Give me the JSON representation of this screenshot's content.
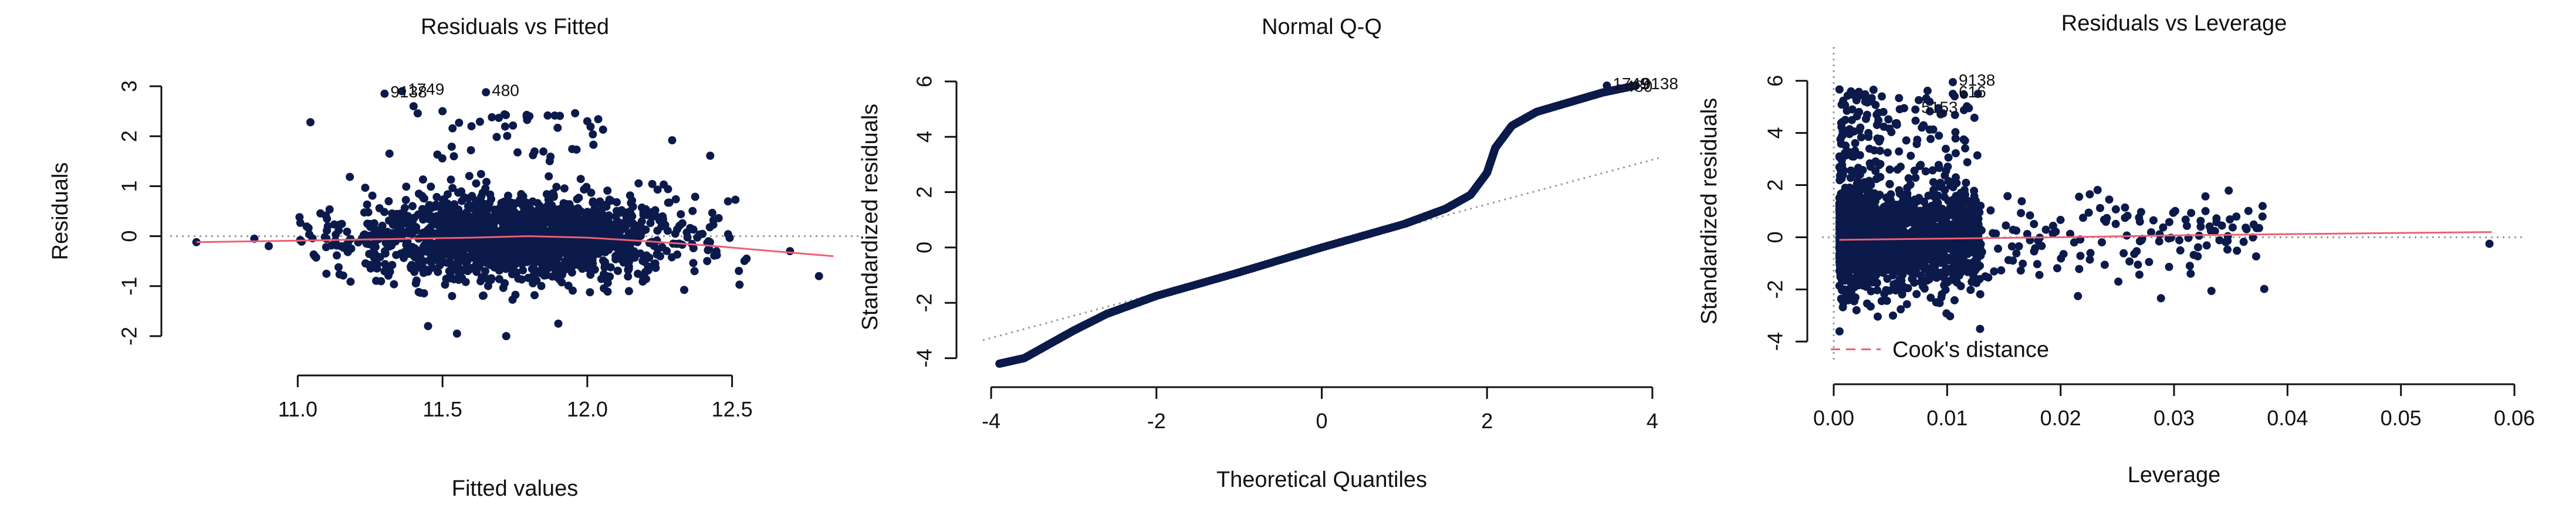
{
  "colors": {
    "points": "#0b1a4a",
    "smooth": "#ee5f73",
    "reference": "#999999",
    "axis": "#111111"
  },
  "chart_data": [
    {
      "type": "scatter",
      "title": "Residuals vs Fitted",
      "xlabel": "Fitted values",
      "ylabel": "Residuals",
      "xlim": [
        10.6,
        12.9
      ],
      "ylim": [
        -2.2,
        3.2
      ],
      "xticks": [
        11.0,
        11.5,
        12.0,
        12.5
      ],
      "xtick_labels": [
        "11.0",
        "11.5",
        "12.0",
        "12.5"
      ],
      "yticks": [
        -2,
        -1,
        0,
        1,
        2,
        3
      ],
      "ytick_labels": [
        "-2",
        "-1",
        "0",
        "1",
        "2",
        "3"
      ],
      "reference_line": {
        "type": "horizontal",
        "y": 0,
        "style": "dotted"
      },
      "smooth_curve": [
        [
          10.65,
          -0.12
        ],
        [
          11.0,
          -0.09
        ],
        [
          11.3,
          -0.06
        ],
        [
          11.6,
          -0.03
        ],
        [
          11.8,
          0.0
        ],
        [
          12.0,
          -0.03
        ],
        [
          12.2,
          -0.1
        ],
        [
          12.4,
          -0.18
        ],
        [
          12.6,
          -0.28
        ],
        [
          12.85,
          -0.4
        ]
      ],
      "labeled_points": [
        {
          "label": "1749",
          "x": 11.36,
          "y": 2.9
        },
        {
          "label": "9138",
          "x": 11.3,
          "y": 2.85
        },
        {
          "label": "480",
          "x": 11.65,
          "y": 2.88
        }
      ],
      "points": {
        "count": 1800,
        "x_range": [
          10.65,
          12.85
        ],
        "x_center": 11.75,
        "y_center": 0.0,
        "y_range": [
          -2.0,
          2.9
        ],
        "outliers": [
          [
            10.65,
            -0.12
          ],
          [
            10.85,
            -0.05
          ],
          [
            10.9,
            -0.2
          ],
          [
            12.7,
            -0.3
          ],
          [
            12.8,
            -0.8
          ],
          [
            12.55,
            -0.45
          ],
          [
            11.55,
            -1.95
          ],
          [
            11.72,
            -2.0
          ],
          [
            11.45,
            -1.8
          ],
          [
            11.9,
            -1.75
          ],
          [
            11.4,
            2.6
          ],
          [
            11.5,
            2.5
          ],
          [
            11.8,
            2.4
          ],
          [
            12.0,
            2.3
          ],
          [
            11.6,
            2.2
          ]
        ]
      }
    },
    {
      "type": "scatter",
      "title": "Normal Q-Q",
      "xlabel": "Theoretical Quantiles",
      "ylabel": "Standardized residuals",
      "xlim": [
        -4.1,
        4.1
      ],
      "ylim": [
        -4.2,
        6.4
      ],
      "xticks": [
        -4,
        -2,
        0,
        2,
        4
      ],
      "xtick_labels": [
        "-4",
        "-2",
        "0",
        "2",
        "4"
      ],
      "yticks": [
        -4,
        -2,
        0,
        2,
        4,
        6
      ],
      "ytick_labels": [
        "-4",
        "-2",
        "0",
        "2",
        "4",
        "6"
      ],
      "reference_line": {
        "type": "line",
        "from": [
          -4.1,
          -3.35
        ],
        "to": [
          4.1,
          3.25
        ],
        "style": "dotted"
      },
      "labeled_points": [
        {
          "label": "1749",
          "x": 3.45,
          "y": 5.85
        },
        {
          "label": "480",
          "x": 3.6,
          "y": 5.75
        },
        {
          "label": "9138",
          "x": 3.8,
          "y": 5.85
        }
      ],
      "qq_curve": [
        [
          -3.9,
          -4.2
        ],
        [
          -3.6,
          -4.0
        ],
        [
          -3.3,
          -3.5
        ],
        [
          -3.0,
          -3.0
        ],
        [
          -2.6,
          -2.4
        ],
        [
          -2.0,
          -1.75
        ],
        [
          -1.0,
          -0.9
        ],
        [
          0.0,
          0.0
        ],
        [
          1.0,
          0.85
        ],
        [
          1.5,
          1.4
        ],
        [
          1.8,
          1.9
        ],
        [
          2.0,
          2.7
        ],
        [
          2.1,
          3.6
        ],
        [
          2.3,
          4.4
        ],
        [
          2.6,
          4.9
        ],
        [
          3.0,
          5.25
        ],
        [
          3.4,
          5.6
        ],
        [
          3.8,
          5.85
        ]
      ]
    },
    {
      "type": "scatter",
      "title": "Residuals vs Leverage",
      "xlabel": "Leverage",
      "ylabel": "Standardized residuals",
      "xlim": [
        0.0,
        0.06
      ],
      "ylim": [
        -4.4,
        6.4
      ],
      "xticks": [
        0.0,
        0.01,
        0.02,
        0.03,
        0.04,
        0.05,
        0.06
      ],
      "xtick_labels": [
        "0.00",
        "0.01",
        "0.02",
        "0.03",
        "0.04",
        "0.05",
        "0.06"
      ],
      "yticks": [
        -4,
        -2,
        0,
        2,
        4,
        6
      ],
      "ytick_labels": [
        "-4",
        "-2",
        "0",
        "2",
        "4",
        "6"
      ],
      "reference_line": {
        "type": "horizontal",
        "y": 0,
        "style": "dotted"
      },
      "vertical_reference": {
        "x": 0.0,
        "style": "dotted"
      },
      "smooth_curve": [
        [
          0.0005,
          -0.1
        ],
        [
          0.01,
          -0.05
        ],
        [
          0.02,
          0.0
        ],
        [
          0.03,
          0.07
        ],
        [
          0.04,
          0.12
        ],
        [
          0.058,
          0.2
        ]
      ],
      "labeled_points": [
        {
          "label": "9138",
          "x": 0.0105,
          "y": 5.95
        },
        {
          "label": "616",
          "x": 0.0105,
          "y": 5.5
        },
        {
          "label": "5153",
          "x": 0.0072,
          "y": 4.9
        }
      ],
      "legend": {
        "label": "Cook's distance",
        "position": "bottom-left",
        "style": "dashed"
      },
      "points": {
        "main_cluster_x": [
          0.0005,
          0.013
        ],
        "main_cluster_y": [
          -4.0,
          6.0
        ],
        "sparse_cluster_x": [
          0.013,
          0.038
        ],
        "isolated": [
          [
            0.0578,
            -0.25
          ]
        ]
      }
    }
  ]
}
